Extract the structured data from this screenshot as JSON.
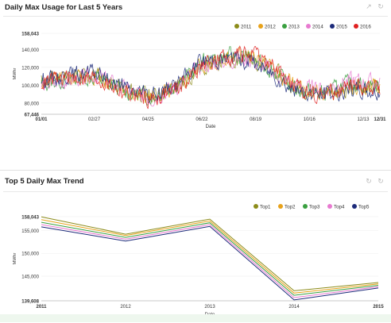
{
  "charts": {
    "top": {
      "title": "Daily Max Usage for Last 5 Years",
      "tool_icons": [
        "export-icon",
        "refresh-icon"
      ],
      "tool_glyphs": [
        "↗",
        "↻"
      ]
    },
    "bottom": {
      "title": "Top 5 Daily Max Trend",
      "tool_icons": [
        "export-icon",
        "refresh-icon"
      ],
      "tool_glyphs": [
        "↻",
        "↻"
      ]
    }
  },
  "chart_data": [
    {
      "type": "line",
      "title": "Daily Max Usage for Last 5 Years",
      "xlabel": "Date",
      "ylabel": "MWhr",
      "ylim": [
        67446,
        158043
      ],
      "y_ticks": [
        {
          "value": 67446,
          "label": "67,446"
        },
        {
          "value": 80000,
          "label": "80,000"
        },
        {
          "value": 100000,
          "label": "100,000"
        },
        {
          "value": 120000,
          "label": "120,000"
        },
        {
          "value": 140000,
          "label": "140,000"
        },
        {
          "value": 158043,
          "label": "158,043"
        }
      ],
      "x_ticks": [
        {
          "day": 1,
          "label": "01/01",
          "bold": true
        },
        {
          "day": 58,
          "label": "02/27",
          "bold": false
        },
        {
          "day": 116,
          "label": "04/25",
          "bold": false
        },
        {
          "day": 174,
          "label": "06/22",
          "bold": false
        },
        {
          "day": 232,
          "label": "08/19",
          "bold": false
        },
        {
          "day": 290,
          "label": "10/16",
          "bold": false
        },
        {
          "day": 348,
          "label": "12/13",
          "bold": false
        },
        {
          "day": 366,
          "label": "12/31",
          "bold": true
        }
      ],
      "legend_position": "top-right",
      "series": [
        {
          "name": "2011",
          "color": "#8c8c1a",
          "seed": 11,
          "base": [
            [
              1,
              104000
            ],
            [
              30,
              110000
            ],
            [
              60,
              112000
            ],
            [
              90,
              96000
            ],
            [
              120,
              88000
            ],
            [
              150,
              99000
            ],
            [
              175,
              121000
            ],
            [
              205,
              128000
            ],
            [
              225,
              132000
            ],
            [
              250,
              118000
            ],
            [
              275,
              98000
            ],
            [
              305,
              92000
            ],
            [
              335,
              97000
            ],
            [
              366,
              98000
            ]
          ]
        },
        {
          "name": "2012",
          "color": "#e8a21a",
          "seed": 12,
          "base": [
            [
              1,
              102000
            ],
            [
              30,
              108000
            ],
            [
              60,
              110000
            ],
            [
              90,
              94000
            ],
            [
              120,
              86000
            ],
            [
              150,
              101000
            ],
            [
              175,
              124000
            ],
            [
              205,
              131000
            ],
            [
              225,
              134000
            ],
            [
              250,
              120000
            ],
            [
              275,
              97000
            ],
            [
              305,
              90000
            ],
            [
              335,
              98000
            ],
            [
              366,
              96000
            ]
          ]
        },
        {
          "name": "2013",
          "color": "#3aa040",
          "seed": 13,
          "base": [
            [
              1,
              101000
            ],
            [
              30,
              107000
            ],
            [
              60,
              109000
            ],
            [
              90,
              93000
            ],
            [
              120,
              87000
            ],
            [
              150,
              103000
            ],
            [
              175,
              126000
            ],
            [
              205,
              133000
            ],
            [
              225,
              130000
            ],
            [
              250,
              117000
            ],
            [
              275,
              95000
            ],
            [
              305,
              91000
            ],
            [
              335,
              103000
            ],
            [
              366,
              99000
            ]
          ]
        },
        {
          "name": "2014",
          "color": "#e87ad0",
          "seed": 14,
          "base": [
            [
              1,
              99000
            ],
            [
              30,
              105000
            ],
            [
              60,
              111000
            ],
            [
              90,
              95000
            ],
            [
              120,
              85000
            ],
            [
              150,
              100000
            ],
            [
              175,
              122000
            ],
            [
              205,
              128000
            ],
            [
              225,
              129000
            ],
            [
              250,
              116000
            ],
            [
              275,
              99000
            ],
            [
              305,
              96000
            ],
            [
              335,
              106000
            ],
            [
              366,
              101000
            ]
          ]
        },
        {
          "name": "2015",
          "color": "#1c2a7a",
          "seed": 15,
          "base": [
            [
              1,
              106000
            ],
            [
              30,
              112000
            ],
            [
              60,
              114000
            ],
            [
              90,
              97000
            ],
            [
              120,
              88000
            ],
            [
              150,
              104000
            ],
            [
              175,
              128000
            ],
            [
              205,
              130000
            ],
            [
              225,
              127000
            ],
            [
              250,
              114000
            ],
            [
              275,
              93000
            ],
            [
              305,
              89000
            ],
            [
              335,
              95000
            ],
            [
              366,
              92000
            ]
          ]
        },
        {
          "name": "2016",
          "color": "#e02020",
          "seed": 16,
          "base": [
            [
              1,
              103000
            ],
            [
              30,
              109000
            ],
            [
              60,
              108000
            ],
            [
              90,
              92000
            ],
            [
              120,
              84000
            ],
            [
              150,
              98000
            ],
            [
              175,
              123000
            ],
            [
              205,
              133000
            ],
            [
              225,
              136000
            ],
            [
              250,
              122000
            ],
            [
              275,
              96000
            ],
            [
              305,
              90000
            ],
            [
              335,
              99000
            ],
            [
              366,
              97000
            ]
          ]
        }
      ]
    },
    {
      "type": "line",
      "title": "Top 5 Daily Max Trend",
      "xlabel": "Date",
      "ylabel": "MWhr",
      "ylim": [
        139608,
        158043
      ],
      "categories": [
        "2011",
        "2012",
        "2013",
        "2014",
        "2015"
      ],
      "category_bold": [
        true,
        false,
        false,
        false,
        true
      ],
      "y_ticks": [
        {
          "value": 139608,
          "label": "139,608"
        },
        {
          "value": 145000,
          "label": "145,000"
        },
        {
          "value": 150000,
          "label": "150,000"
        },
        {
          "value": 155000,
          "label": "155,000"
        },
        {
          "value": 158043,
          "label": "158,043"
        }
      ],
      "legend_position": "top-right",
      "series": [
        {
          "name": "Top1",
          "color": "#8c8c1a",
          "values": [
            158000,
            154200,
            157500,
            141800,
            143600
          ]
        },
        {
          "name": "Top2",
          "color": "#e8a21a",
          "values": [
            157400,
            153900,
            157100,
            141300,
            143300
          ]
        },
        {
          "name": "Top3",
          "color": "#3aa040",
          "values": [
            156800,
            153500,
            156700,
            140800,
            143000
          ]
        },
        {
          "name": "Top4",
          "color": "#e87ad0",
          "values": [
            156300,
            153100,
            156300,
            140300,
            142700
          ]
        },
        {
          "name": "Top5",
          "color": "#1c2a7a",
          "values": [
            155800,
            152700,
            155900,
            139800,
            142400
          ]
        }
      ]
    }
  ]
}
